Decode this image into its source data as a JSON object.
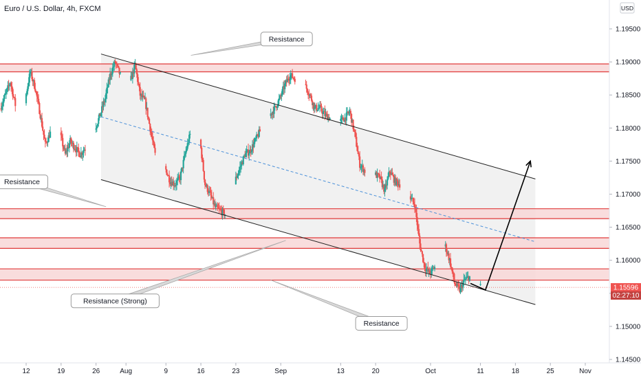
{
  "header": {
    "symbol_title": "Euro / U.S. Dollar, 4h, FXCM",
    "currency_button": "USD"
  },
  "price_tag": {
    "price": "1.15596",
    "countdown": "02:27:10"
  },
  "colors": {
    "up_candle": "#26a69a",
    "down_candle": "#ef5350",
    "zone_fill": "#f8d7d7",
    "zone_line": "#e03b3b",
    "channel_fill": "#ececec",
    "channel_line": "#1e1e1e",
    "midline": "#4a90d9",
    "price_tag_bg": "#ef5350",
    "price_tag_bg_dark": "#c2413f"
  },
  "chart_data": {
    "type": "candlestick",
    "title": "Euro / U.S. Dollar, 4h, FXCM",
    "ylim": [
      1.1438,
      1.1988
    ],
    "y_ticks": [
      1.195,
      1.19,
      1.185,
      1.18,
      1.175,
      1.17,
      1.165,
      1.16,
      1.155,
      1.15,
      1.145
    ],
    "y_tick_labels": [
      "1.19500",
      "1.19000",
      "1.18500",
      "1.18000",
      "1.17500",
      "1.17000",
      "1.16500",
      "1.16000",
      "1.15500",
      "1.15000",
      "1.14500"
    ],
    "x_ticks": [
      {
        "label": "12",
        "date": "2021-07-12"
      },
      {
        "label": "19",
        "date": "2021-07-19"
      },
      {
        "label": "26",
        "date": "2021-07-26"
      },
      {
        "label": "Aug",
        "date": "2021-08-01"
      },
      {
        "label": "9",
        "date": "2021-08-09"
      },
      {
        "label": "16",
        "date": "2021-08-16"
      },
      {
        "label": "23",
        "date": "2021-08-23"
      },
      {
        "label": "Sep",
        "date": "2021-09-01"
      },
      {
        "label": "13",
        "date": "2021-09-13"
      },
      {
        "label": "20",
        "date": "2021-09-20"
      },
      {
        "label": "Oct",
        "date": "2021-10-01"
      },
      {
        "label": "11",
        "date": "2021-10-11"
      },
      {
        "label": "18",
        "date": "2021-10-18"
      },
      {
        "label": "25",
        "date": "2021-10-25"
      },
      {
        "label": "Nov",
        "date": "2021-11-01"
      }
    ],
    "price_path_start": "2021-07-07",
    "price_path_end": "2021-10-11",
    "price_path": [
      [
        "2021-07-07",
        1.183
      ],
      [
        "2021-07-09",
        1.187
      ],
      [
        "2021-07-11",
        1.18
      ],
      [
        "2021-07-12",
        1.1845
      ],
      [
        "2021-07-13",
        1.1885
      ],
      [
        "2021-07-14",
        1.186
      ],
      [
        "2021-07-15",
        1.182
      ],
      [
        "2021-07-16",
        1.1775
      ],
      [
        "2021-07-18",
        1.181
      ],
      [
        "2021-07-19",
        1.179
      ],
      [
        "2021-07-20",
        1.176
      ],
      [
        "2021-07-21",
        1.178
      ],
      [
        "2021-07-22",
        1.177
      ],
      [
        "2021-07-23",
        1.176
      ],
      [
        "2021-07-24",
        1.177
      ],
      [
        "2021-07-26",
        1.18
      ],
      [
        "2021-07-27",
        1.182
      ],
      [
        "2021-07-28",
        1.1845
      ],
      [
        "2021-07-29",
        1.188
      ],
      [
        "2021-07-30",
        1.19
      ],
      [
        "2021-07-31",
        1.188
      ],
      [
        "2021-08-01",
        1.1885
      ],
      [
        "2021-08-02",
        1.187
      ],
      [
        "2021-08-03",
        1.1895
      ],
      [
        "2021-08-04",
        1.185
      ],
      [
        "2021-08-05",
        1.184
      ],
      [
        "2021-08-06",
        1.18
      ],
      [
        "2021-08-07",
        1.176
      ],
      [
        "2021-08-08",
        1.1755
      ],
      [
        "2021-08-09",
        1.174
      ],
      [
        "2021-08-10",
        1.172
      ],
      [
        "2021-08-11",
        1.1715
      ],
      [
        "2021-08-12",
        1.1725
      ],
      [
        "2021-08-13",
        1.176
      ],
      [
        "2021-08-14",
        1.179
      ],
      [
        "2021-08-15",
        1.1795
      ],
      [
        "2021-08-16",
        1.178
      ],
      [
        "2021-08-17",
        1.1715
      ],
      [
        "2021-08-18",
        1.17
      ],
      [
        "2021-08-19",
        1.168
      ],
      [
        "2021-08-20",
        1.1675
      ],
      [
        "2021-08-21",
        1.167
      ],
      [
        "2021-08-22",
        1.169
      ],
      [
        "2021-08-23",
        1.172
      ],
      [
        "2021-08-24",
        1.174
      ],
      [
        "2021-08-25",
        1.176
      ],
      [
        "2021-08-26",
        1.1765
      ],
      [
        "2021-08-27",
        1.178
      ],
      [
        "2021-08-28",
        1.1795
      ],
      [
        "2021-08-29",
        1.181
      ],
      [
        "2021-08-30",
        1.182
      ],
      [
        "2021-08-31",
        1.183
      ],
      [
        "2021-09-01",
        1.1845
      ],
      [
        "2021-09-02",
        1.1865
      ],
      [
        "2021-09-03",
        1.188
      ],
      [
        "2021-09-04",
        1.1875
      ],
      [
        "2021-09-05",
        1.187
      ],
      [
        "2021-09-06",
        1.1865
      ],
      [
        "2021-09-07",
        1.185
      ],
      [
        "2021-09-08",
        1.183
      ],
      [
        "2021-09-09",
        1.183
      ],
      [
        "2021-09-10",
        1.182
      ],
      [
        "2021-09-11",
        1.1815
      ],
      [
        "2021-09-12",
        1.1815
      ],
      [
        "2021-09-13",
        1.181
      ],
      [
        "2021-09-14",
        1.1815
      ],
      [
        "2021-09-15",
        1.1825
      ],
      [
        "2021-09-16",
        1.179
      ],
      [
        "2021-09-17",
        1.1745
      ],
      [
        "2021-09-18",
        1.1735
      ],
      [
        "2021-09-19",
        1.1725
      ],
      [
        "2021-09-20",
        1.173
      ],
      [
        "2021-09-21",
        1.1725
      ],
      [
        "2021-09-22",
        1.1705
      ],
      [
        "2021-09-23",
        1.1735
      ],
      [
        "2021-09-24",
        1.172
      ],
      [
        "2021-09-25",
        1.1715
      ],
      [
        "2021-09-26",
        1.1705
      ],
      [
        "2021-09-27",
        1.1695
      ],
      [
        "2021-09-28",
        1.1685
      ],
      [
        "2021-09-29",
        1.1625
      ],
      [
        "2021-09-30",
        1.159
      ],
      [
        "2021-10-01",
        1.158
      ],
      [
        "2021-10-02",
        1.159
      ],
      [
        "2021-10-03",
        1.16
      ],
      [
        "2021-10-04",
        1.1625
      ],
      [
        "2021-10-05",
        1.16
      ],
      [
        "2021-10-06",
        1.1565
      ],
      [
        "2021-10-07",
        1.1555
      ],
      [
        "2021-10-08",
        1.157
      ],
      [
        "2021-10-09",
        1.1575
      ],
      [
        "2021-10-10",
        1.1575
      ],
      [
        "2021-10-11",
        1.156
      ]
    ],
    "resistance_zones": [
      {
        "top": 1.1897,
        "bottom": 1.1885
      },
      {
        "top": 1.1678,
        "bottom": 1.1663
      },
      {
        "top": 1.1634,
        "bottom": 1.1618
      },
      {
        "top": 1.1587,
        "bottom": 1.157
      }
    ],
    "dotted_price_line": 1.1559,
    "channel": {
      "upper": [
        [
          "2021-07-27",
          1.1912
        ],
        [
          "2021-10-22",
          1.1723
        ]
      ],
      "lower": [
        [
          "2021-07-27",
          1.1722
        ],
        [
          "2021-10-22",
          1.1533
        ]
      ],
      "midline": [
        [
          "2021-07-27",
          1.1817
        ],
        [
          "2021-10-22",
          1.1628
        ]
      ]
    },
    "projection_arrow": [
      [
        "2021-10-09",
        1.1565
      ],
      [
        "2021-10-12",
        1.1555
      ],
      [
        "2021-10-21",
        1.175
      ]
    ],
    "annotations": [
      {
        "text": "Resistance",
        "box": [
          "2021-08-28",
          1.1945
        ],
        "anchor": [
          "2021-08-14",
          1.191
        ]
      },
      {
        "text": "Resistance",
        "box": [
          "2021-07-06",
          1.1729
        ],
        "anchor": [
          "2021-07-28",
          1.1681
        ]
      },
      {
        "text": "Resistance (Strong)",
        "box": [
          "2021-07-21",
          1.1549
        ],
        "anchor": [
          "2021-09-02",
          1.163
        ]
      },
      {
        "text": "Resistance",
        "box": [
          "2021-09-16",
          1.1515
        ],
        "anchor": [
          "2021-08-30",
          1.157
        ]
      }
    ]
  }
}
